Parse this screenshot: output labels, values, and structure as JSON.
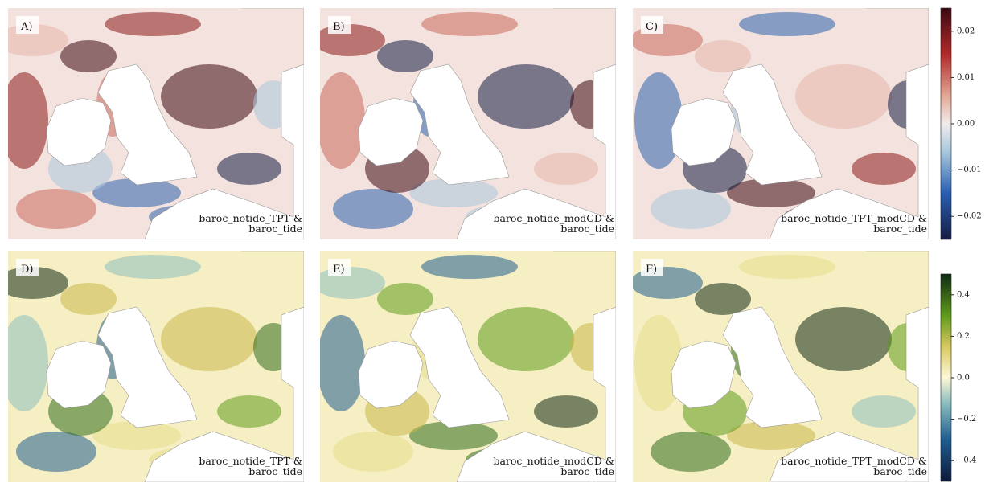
{
  "panels": [
    {
      "label": "A)",
      "caption": [
        "baroc_notide_TPT &",
        "baroc_tide"
      ]
    },
    {
      "label": "B)",
      "caption": [
        "baroc_notide_modCD &",
        "baroc_tide"
      ]
    },
    {
      "label": "C)",
      "caption": [
        "baroc_notide_TPT_modCD &",
        "baroc_tide"
      ]
    },
    {
      "label": "D)",
      "caption": [
        "baroc_notide_TPT &",
        "baroc_tide"
      ]
    },
    {
      "label": "E)",
      "caption": [
        "baroc_notide_modCD &",
        "baroc_tide"
      ]
    },
    {
      "label": "F)",
      "caption": [
        "baroc_notide_TPT_modCD &",
        "baroc_tide"
      ]
    }
  ],
  "colorbars": [
    {
      "ylim": [
        -0.025,
        0.025
      ],
      "ticks": [
        0.02,
        0.01,
        {
          "value": 0,
          "label": "0.00"
        },
        {
          "value": -0.01,
          "label": "−0.01"
        },
        {
          "value": -0.02,
          "label": "−0.02"
        }
      ]
    },
    {
      "ylim": [
        -0.5,
        0.5
      ],
      "ticks": [
        0.4,
        0.2,
        {
          "value": 0,
          "label": "0.0"
        },
        {
          "value": -0.2,
          "label": "−0.2"
        },
        {
          "value": -0.4,
          "label": "−0.4"
        }
      ]
    }
  ]
}
